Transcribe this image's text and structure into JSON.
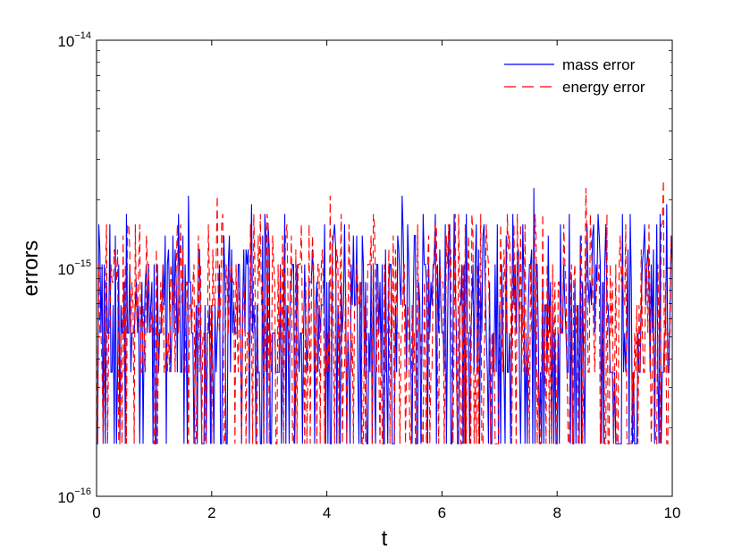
{
  "chart_data": {
    "type": "line",
    "title": "",
    "xlabel": "t",
    "ylabel": "errors",
    "xlim": [
      0,
      10
    ],
    "ylim": [
      1e-16,
      1e-14
    ],
    "yscale": "log",
    "grid": false,
    "legend_position": "top-right",
    "x_ticks": [
      {
        "value": 0,
        "label": "0"
      },
      {
        "value": 2,
        "label": "2"
      },
      {
        "value": 4,
        "label": "4"
      },
      {
        "value": 6,
        "label": "6"
      },
      {
        "value": 8,
        "label": "8"
      },
      {
        "value": 10,
        "label": "10"
      }
    ],
    "y_ticks": [
      {
        "value": 1e-16,
        "base": "10",
        "exp": "−16"
      },
      {
        "value": 1e-15,
        "base": "10",
        "exp": "−15"
      },
      {
        "value": 1e-14,
        "base": "10",
        "exp": "−14"
      }
    ],
    "series": [
      {
        "name": "mass error",
        "color": "#0000ff",
        "dash": "solid",
        "levels": [
          1.7e-16,
          3.5e-16,
          5.2e-16,
          6.9e-16,
          8.7e-16,
          1.04e-15,
          1.21e-15,
          1.39e-15,
          1.56e-15,
          1.73e-15,
          1.91e-15,
          2.08e-15,
          2.25e-15
        ],
        "peaks": [
          {
            "x": 0.04,
            "y": 1.56e-15
          },
          {
            "x": 1.6,
            "y": 2.08e-15
          },
          {
            "x": 2.7,
            "y": 1.91e-15
          },
          {
            "x": 5.3,
            "y": 2.08e-15
          },
          {
            "x": 7.6,
            "y": 2.25e-15
          },
          {
            "x": 9.9,
            "y": 1.91e-15
          }
        ]
      },
      {
        "name": "energy error",
        "color": "#ff0000",
        "dash": "dashed",
        "levels": [
          1.7e-16,
          3.5e-16,
          5.2e-16,
          6.9e-16,
          8.7e-16,
          1.04e-15,
          1.21e-15,
          1.39e-15,
          1.56e-15,
          1.73e-15,
          1.91e-15,
          2.08e-15,
          2.43e-15
        ],
        "peaks": [
          {
            "x": 2.1,
            "y": 2.08e-15
          },
          {
            "x": 4.05,
            "y": 2.08e-15
          },
          {
            "x": 8.5,
            "y": 2.25e-15
          },
          {
            "x": 9.85,
            "y": 2.43e-15
          }
        ]
      }
    ]
  }
}
